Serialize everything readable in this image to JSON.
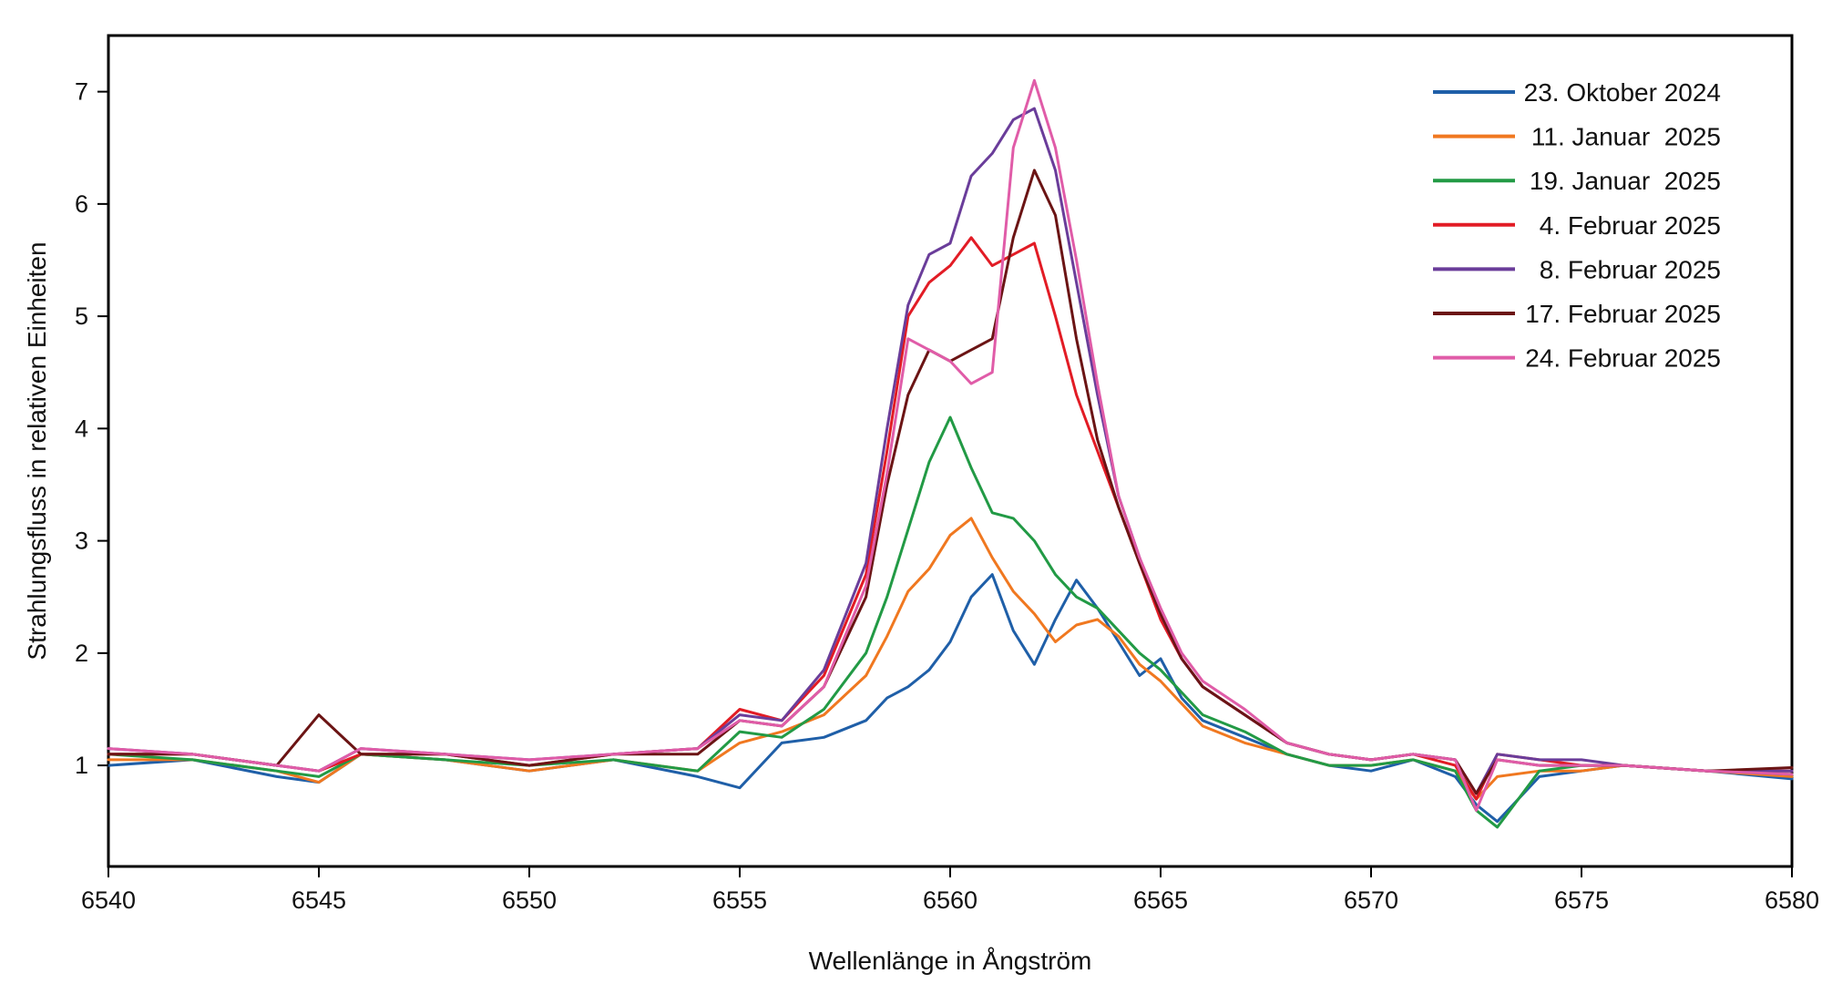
{
  "chart_data": {
    "type": "line",
    "title": "",
    "xlabel": "Wellenlänge in Ångström",
    "ylabel": "Strahlungsfluss in relativen Einheiten",
    "xlim": [
      6540,
      6580
    ],
    "ylim": [
      0.1,
      7.5
    ],
    "xticks": [
      6540,
      6545,
      6550,
      6555,
      6560,
      6565,
      6570,
      6575,
      6580
    ],
    "xtick_labels": [
      "6540",
      "6545",
      "6550",
      "6555",
      "6560",
      "6565",
      "6570",
      "6575",
      "6580"
    ],
    "yticks": [
      1,
      2,
      3,
      4,
      5,
      6,
      7
    ],
    "ytick_labels": [
      "1",
      "2",
      "3",
      "4",
      "5",
      "6",
      "7"
    ],
    "grid": false,
    "legend_position": "top-right",
    "x": [
      6540,
      6542,
      6544,
      6545,
      6546,
      6548,
      6550,
      6552,
      6554,
      6555,
      6556,
      6557,
      6558,
      6558.5,
      6559,
      6559.5,
      6560,
      6560.5,
      6561,
      6561.5,
      6562,
      6562.5,
      6563,
      6563.5,
      6564,
      6564.5,
      6565,
      6565.5,
      6566,
      6567,
      6568,
      6569,
      6570,
      6571,
      6572,
      6572.5,
      6573,
      6574,
      6575,
      6576,
      6578,
      6580
    ],
    "series": [
      {
        "name": "23. Oktober 2024",
        "color": "#1f5fa8",
        "values": [
          1.0,
          1.05,
          0.9,
          0.85,
          1.1,
          1.05,
          0.95,
          1.05,
          0.9,
          0.8,
          1.2,
          1.25,
          1.4,
          1.6,
          1.7,
          1.85,
          2.1,
          2.5,
          2.7,
          2.2,
          1.9,
          2.3,
          2.65,
          2.4,
          2.1,
          1.8,
          1.95,
          1.6,
          1.4,
          1.25,
          1.1,
          1.0,
          0.95,
          1.05,
          0.9,
          0.65,
          0.5,
          0.9,
          0.95,
          1.0,
          0.95,
          0.88
        ]
      },
      {
        "name": "11. Januar  2025",
        "color": "#f07820",
        "values": [
          1.05,
          1.05,
          0.95,
          0.85,
          1.1,
          1.05,
          0.95,
          1.05,
          0.95,
          1.2,
          1.3,
          1.45,
          1.8,
          2.15,
          2.55,
          2.75,
          3.05,
          3.2,
          2.85,
          2.55,
          2.35,
          2.1,
          2.25,
          2.3,
          2.15,
          1.9,
          1.75,
          1.55,
          1.35,
          1.2,
          1.1,
          1.0,
          1.0,
          1.05,
          0.95,
          0.7,
          0.9,
          0.95,
          0.95,
          1.0,
          0.95,
          0.9
        ]
      },
      {
        "name": "19. Januar  2025",
        "color": "#229a45",
        "values": [
          1.1,
          1.05,
          0.95,
          0.9,
          1.1,
          1.05,
          1.0,
          1.05,
          0.95,
          1.3,
          1.25,
          1.5,
          2.0,
          2.5,
          3.1,
          3.7,
          4.1,
          3.65,
          3.25,
          3.2,
          3.0,
          2.7,
          2.5,
          2.4,
          2.2,
          2.0,
          1.85,
          1.65,
          1.45,
          1.3,
          1.1,
          1.0,
          1.0,
          1.05,
          0.95,
          0.6,
          0.45,
          0.95,
          1.0,
          1.0,
          0.95,
          0.92
        ]
      },
      {
        "name": " 4. Februar 2025",
        "color": "#e21c25",
        "values": [
          1.1,
          1.1,
          1.0,
          0.95,
          1.1,
          1.1,
          1.0,
          1.1,
          1.15,
          1.5,
          1.4,
          1.8,
          2.7,
          3.8,
          5.0,
          5.3,
          5.45,
          5.7,
          5.45,
          5.55,
          5.65,
          5.0,
          4.3,
          3.8,
          3.3,
          2.8,
          2.3,
          1.95,
          1.7,
          1.45,
          1.2,
          1.1,
          1.05,
          1.1,
          1.0,
          0.7,
          1.1,
          1.05,
          1.0,
          1.0,
          0.95,
          0.95
        ]
      },
      {
        "name": " 8. Februar 2025",
        "color": "#6a3d9a",
        "values": [
          1.15,
          1.1,
          1.0,
          0.95,
          1.15,
          1.1,
          1.05,
          1.1,
          1.15,
          1.45,
          1.4,
          1.85,
          2.8,
          4.0,
          5.1,
          5.55,
          5.65,
          6.25,
          6.45,
          6.75,
          6.85,
          6.3,
          5.3,
          4.3,
          3.4,
          2.85,
          2.35,
          1.95,
          1.7,
          1.45,
          1.2,
          1.1,
          1.05,
          1.1,
          1.05,
          0.75,
          1.1,
          1.05,
          1.05,
          1.0,
          0.95,
          0.95
        ]
      },
      {
        "name": "17. Februar 2025",
        "color": "#6b1414",
        "values": [
          1.1,
          1.1,
          1.0,
          1.45,
          1.1,
          1.1,
          1.0,
          1.1,
          1.1,
          1.4,
          1.35,
          1.7,
          2.5,
          3.5,
          4.3,
          4.7,
          4.6,
          4.7,
          4.8,
          5.7,
          6.3,
          5.9,
          4.8,
          3.9,
          3.3,
          2.8,
          2.35,
          1.95,
          1.7,
          1.45,
          1.2,
          1.1,
          1.05,
          1.1,
          1.05,
          0.75,
          1.05,
          1.0,
          1.0,
          1.0,
          0.95,
          0.98
        ]
      },
      {
        "name": "24. Februar 2025",
        "color": "#e05ca8",
        "values": [
          1.15,
          1.1,
          1.0,
          0.95,
          1.15,
          1.1,
          1.05,
          1.1,
          1.15,
          1.4,
          1.35,
          1.7,
          2.6,
          3.6,
          4.8,
          4.7,
          4.6,
          4.4,
          4.5,
          6.5,
          7.1,
          6.5,
          5.5,
          4.4,
          3.4,
          2.85,
          2.4,
          2.0,
          1.75,
          1.5,
          1.2,
          1.1,
          1.05,
          1.1,
          1.05,
          0.6,
          1.05,
          1.0,
          1.0,
          1.0,
          0.95,
          0.92
        ]
      }
    ]
  }
}
